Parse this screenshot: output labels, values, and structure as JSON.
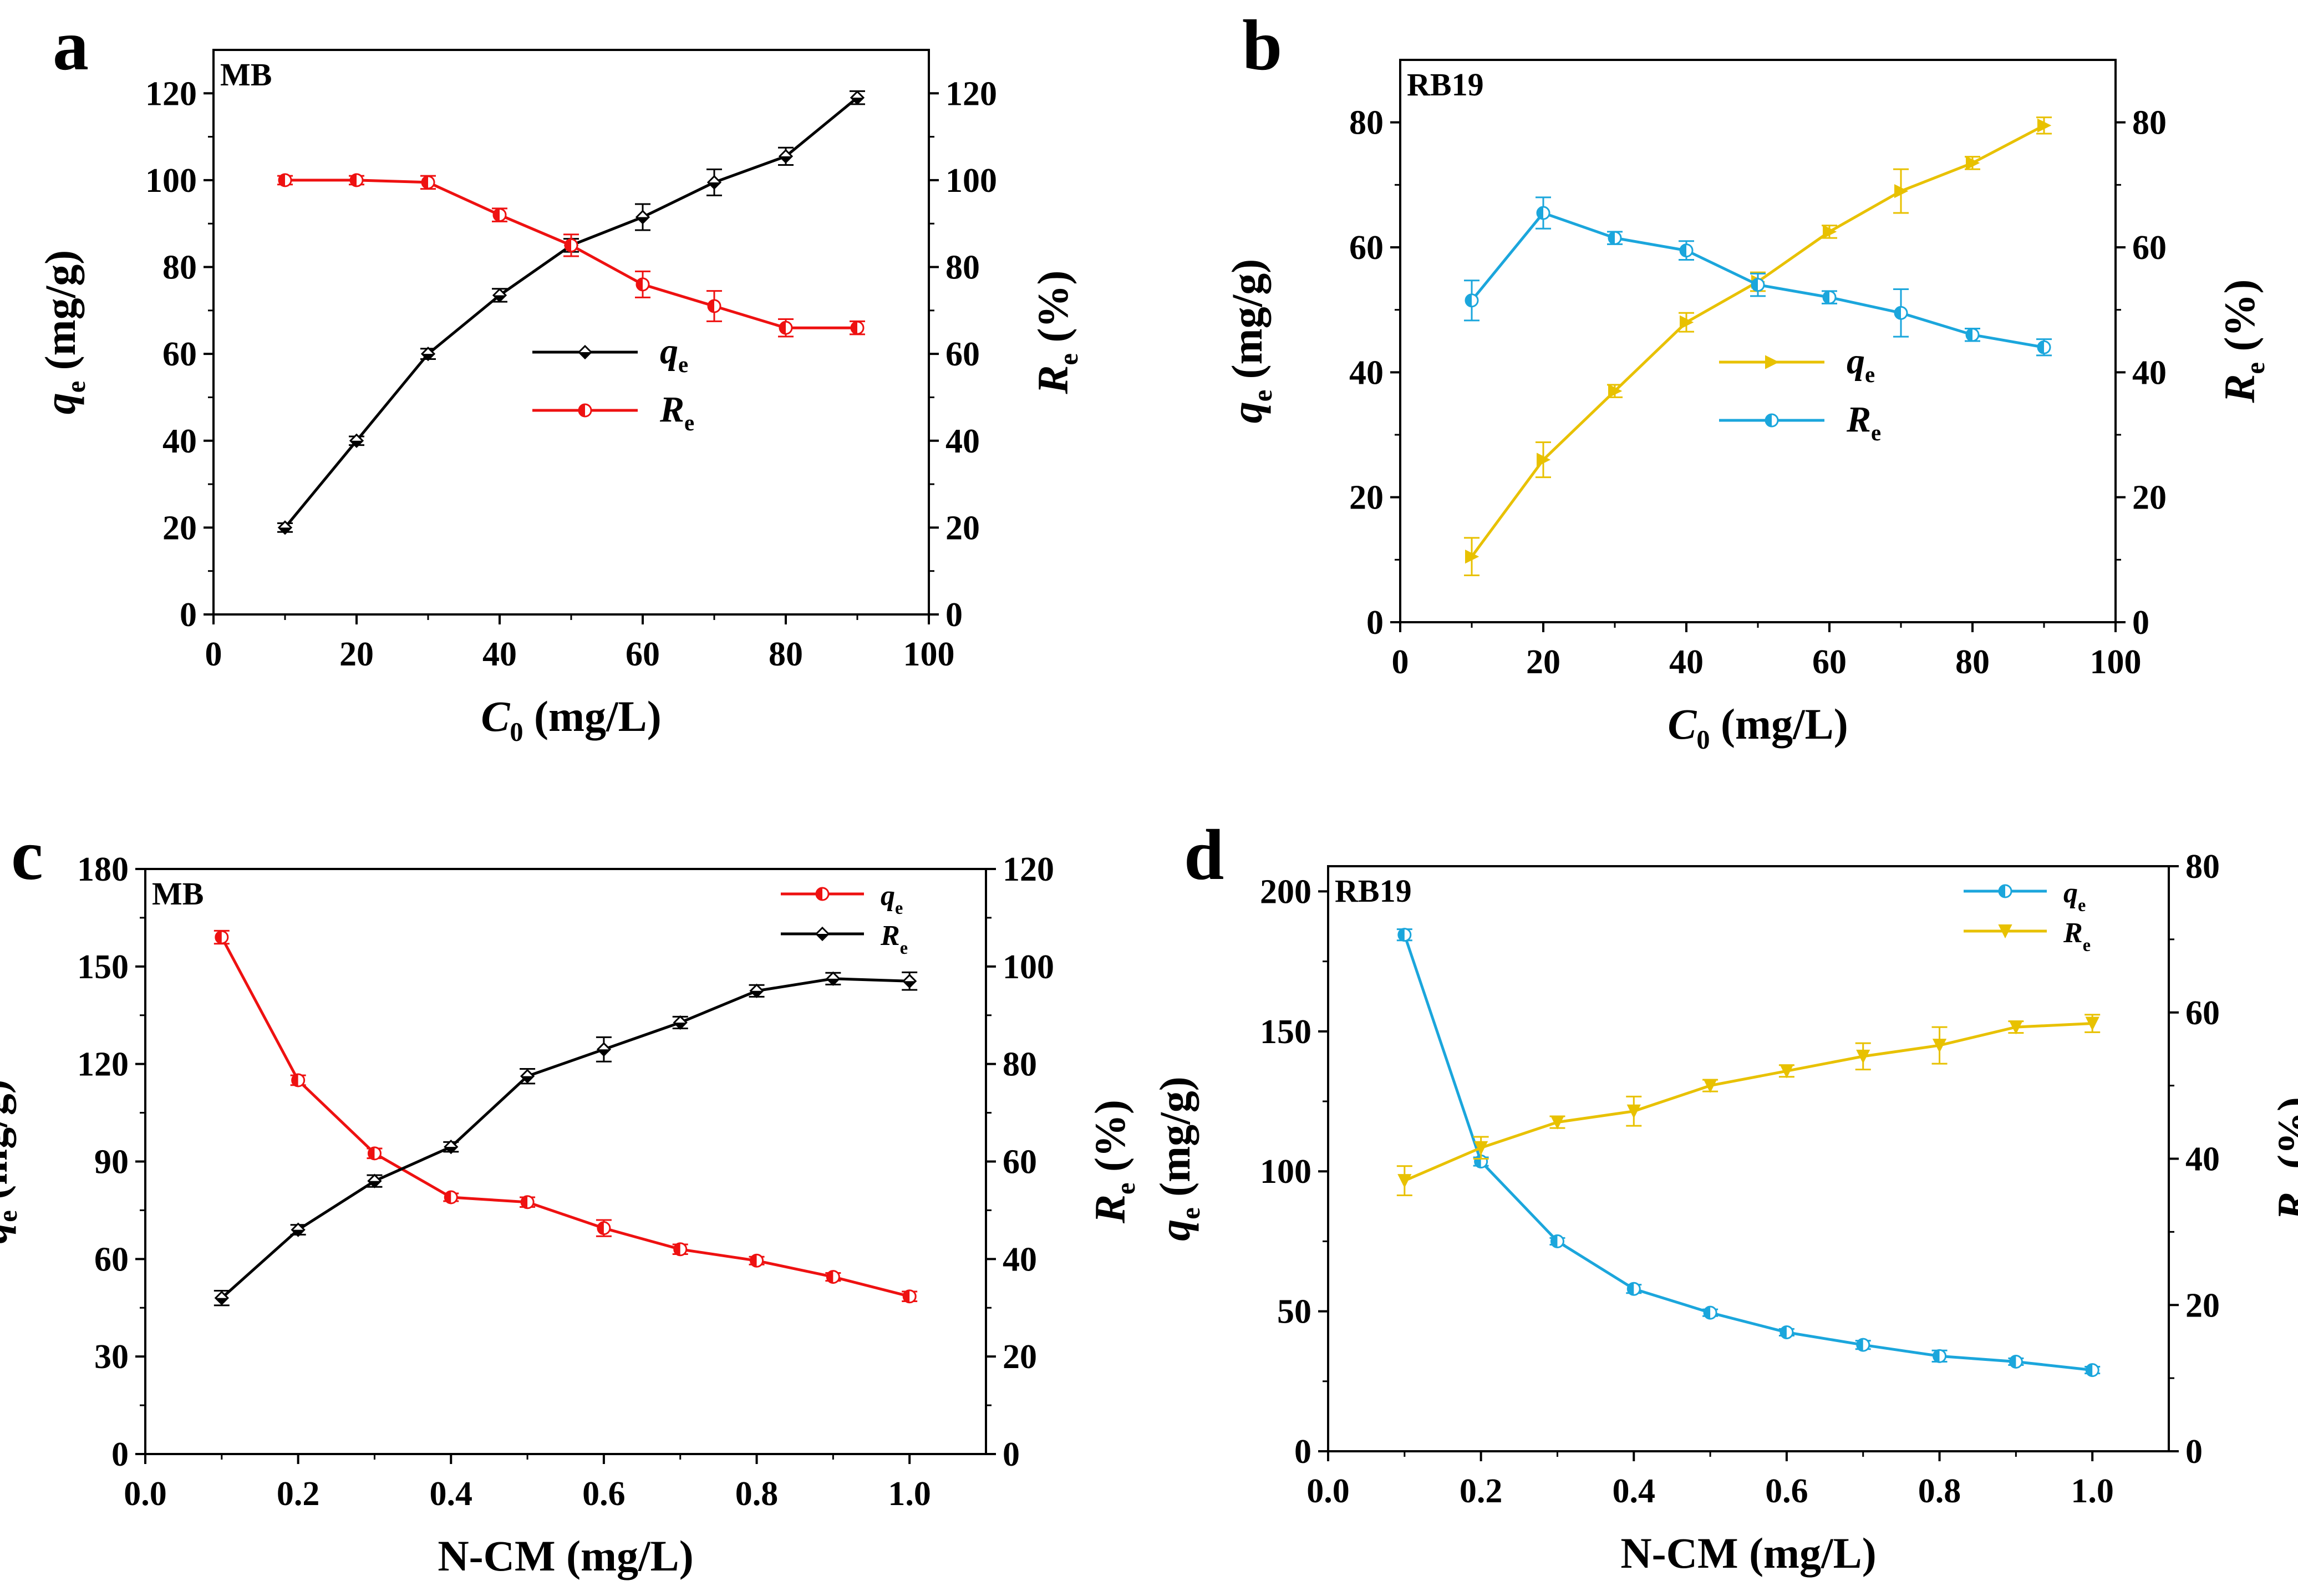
{
  "chart_data": [
    {
      "panel": "a",
      "type": "line",
      "tag": "MB",
      "xlabel": {
        "var": "C",
        "sub": "0",
        "unit": " (mg/L)"
      },
      "ylabel_left": {
        "var": "q",
        "sub": "e",
        "unit": " (mg/g)"
      },
      "ylabel_right": {
        "var": "R",
        "sub": "e",
        "unit": " (%)"
      },
      "xlim": [
        0,
        100
      ],
      "xticks": [
        0,
        20,
        40,
        60,
        80,
        100
      ],
      "xtick_labels": [
        "0",
        "20",
        "40",
        "60",
        "80",
        "100"
      ],
      "ylim_left": [
        0,
        130
      ],
      "yticks_left": [
        0,
        20,
        40,
        60,
        80,
        100,
        120
      ],
      "ytick_labels_left": [
        "0",
        "20",
        "40",
        "60",
        "80",
        "100",
        "120"
      ],
      "ylim_right": [
        0,
        130
      ],
      "yticks_right": [
        0,
        20,
        40,
        60,
        80,
        100,
        120
      ],
      "ytick_labels_right": [
        "0",
        "20",
        "40",
        "60",
        "80",
        "100",
        "120"
      ],
      "series": [
        {
          "name": "q",
          "sub": "e",
          "axis": "left",
          "color": "#000000",
          "marker": "diamond",
          "x": [
            10,
            20,
            30,
            40,
            50,
            60,
            70,
            80,
            90
          ],
          "values": [
            20,
            40,
            60,
            73.5,
            85,
            91.5,
            99.5,
            105.5,
            119
          ],
          "errors": [
            1,
            1,
            1.2,
            1.5,
            1.5,
            3,
            3,
            2,
            1.5
          ]
        },
        {
          "name": "R",
          "sub": "e",
          "axis": "right",
          "color": "#ee1111",
          "marker": "halfcircle",
          "x": [
            10,
            20,
            30,
            40,
            50,
            60,
            70,
            80,
            90
          ],
          "values": [
            100,
            100,
            99.5,
            92,
            85,
            76,
            71,
            66,
            66
          ],
          "errors": [
            1,
            1,
            1.5,
            1.5,
            2.5,
            3,
            3.5,
            2,
            1.5
          ]
        }
      ],
      "legend": "center-right"
    },
    {
      "panel": "b",
      "type": "line",
      "tag": "RB19",
      "xlabel": {
        "var": "C",
        "sub": "0",
        "unit": " (mg/L)"
      },
      "ylabel_left": {
        "var": "q",
        "sub": "e",
        "unit": " (mg/g)"
      },
      "ylabel_right": {
        "var": "R",
        "sub": "e",
        "unit": " (%)"
      },
      "xlim": [
        0,
        100
      ],
      "xticks": [
        0,
        20,
        40,
        60,
        80,
        100
      ],
      "xtick_labels": [
        "0",
        "20",
        "40",
        "60",
        "80",
        "100"
      ],
      "ylim_left": [
        0,
        90
      ],
      "yticks_left": [
        0,
        20,
        40,
        60,
        80
      ],
      "ytick_labels_left": [
        "0",
        "20",
        "40",
        "60",
        "80"
      ],
      "ylim_right": [
        0,
        90
      ],
      "yticks_right": [
        0,
        20,
        40,
        60,
        80
      ],
      "ytick_labels_right": [
        "0",
        "20",
        "40",
        "60",
        "80"
      ],
      "series": [
        {
          "name": "q",
          "sub": "e",
          "axis": "left",
          "color": "#e8c100",
          "marker": "triangle-right",
          "x": [
            10,
            20,
            30,
            40,
            50,
            60,
            70,
            80,
            90
          ],
          "values": [
            10.5,
            26,
            37,
            48,
            54.5,
            62.5,
            69,
            73.5,
            79.5
          ],
          "errors": [
            3,
            2.8,
            1,
            1.5,
            1.5,
            1,
            3.5,
            1,
            1.3
          ]
        },
        {
          "name": "R",
          "sub": "e",
          "axis": "right",
          "color": "#1ba6dc",
          "marker": "halfcircle",
          "x": [
            10,
            20,
            30,
            40,
            50,
            60,
            70,
            80,
            90
          ],
          "values": [
            51.5,
            65.5,
            61.5,
            59.5,
            54,
            52,
            49.5,
            46,
            44
          ],
          "errors": [
            3.2,
            2.5,
            1,
            1.5,
            1.8,
            1,
            3.8,
            1,
            1.3
          ]
        }
      ],
      "legend": "center-right"
    },
    {
      "panel": "c",
      "type": "line",
      "tag": "MB",
      "xlabel": {
        "var": "",
        "sub": "",
        "unit": "N-CM (mg/L)"
      },
      "ylabel_left": {
        "var": "q",
        "sub": "e",
        "unit": " (mg/g)"
      },
      "ylabel_right": {
        "var": "R",
        "sub": "e",
        "unit": " (%)"
      },
      "xlim": [
        0,
        1.1
      ],
      "xticks": [
        0,
        0.2,
        0.4,
        0.6,
        0.8,
        1.0
      ],
      "xtick_labels": [
        "0.0",
        "0.2",
        "0.4",
        "0.6",
        "0.8",
        "1.0"
      ],
      "ylim_left": [
        0,
        180
      ],
      "yticks_left": [
        0,
        30,
        60,
        90,
        120,
        150,
        180
      ],
      "ytick_labels_left": [
        "0",
        "30",
        "60",
        "90",
        "120",
        "150",
        "180"
      ],
      "ylim_right": [
        0,
        120
      ],
      "yticks_right": [
        0,
        20,
        40,
        60,
        80,
        100,
        120
      ],
      "ytick_labels_right": [
        "0",
        "20",
        "40",
        "60",
        "80",
        "100",
        "120"
      ],
      "series": [
        {
          "name": "q",
          "sub": "e",
          "axis": "left",
          "color": "#ee1111",
          "marker": "halfcircle",
          "x": [
            0.1,
            0.2,
            0.3,
            0.4,
            0.5,
            0.6,
            0.7,
            0.8,
            0.9,
            1.0
          ],
          "values": [
            159,
            115,
            92.5,
            79,
            77.5,
            69.5,
            63,
            59.5,
            54.5,
            48.5
          ],
          "errors": [
            2,
            1.5,
            1.5,
            1.2,
            1.5,
            2.5,
            1.5,
            1.2,
            1.2,
            1.5
          ]
        },
        {
          "name": "R",
          "sub": "e",
          "axis": "right",
          "color": "#000000",
          "marker": "diamond",
          "x": [
            0.1,
            0.2,
            0.3,
            0.4,
            0.5,
            0.6,
            0.7,
            0.8,
            0.9,
            1.0
          ],
          "values": [
            32,
            46,
            56,
            63,
            77.5,
            83,
            88.5,
            95,
            97.5,
            97
          ],
          "errors": [
            1.5,
            1,
            1.2,
            1,
            1.5,
            2.5,
            1.2,
            1.2,
            1.2,
            1.8
          ]
        }
      ],
      "legend": "top-right"
    },
    {
      "panel": "d",
      "type": "line",
      "tag": "RB19",
      "xlabel": {
        "var": "",
        "sub": "",
        "unit": "N-CM (mg/L)"
      },
      "ylabel_left": {
        "var": "q",
        "sub": "e",
        "unit": " (mg/g)"
      },
      "ylabel_right": {
        "var": "R",
        "sub": "e",
        "unit": " (%)"
      },
      "xlim": [
        0,
        1.1
      ],
      "xticks": [
        0,
        0.2,
        0.4,
        0.6,
        0.8,
        1.0
      ],
      "xtick_labels": [
        "0.0",
        "0.2",
        "0.4",
        "0.6",
        "0.8",
        "1.0"
      ],
      "ylim_left": [
        0,
        209
      ],
      "yticks_left": [
        0,
        50,
        100,
        150,
        200
      ],
      "ytick_labels_left": [
        "0",
        "50",
        "100",
        "150",
        "200"
      ],
      "ylim_right": [
        0,
        80
      ],
      "yticks_right": [
        0,
        20,
        40,
        60,
        80
      ],
      "ytick_labels_right": [
        "0",
        "20",
        "40",
        "60",
        "80"
      ],
      "series": [
        {
          "name": "q",
          "sub": "e",
          "axis": "left",
          "color": "#1ba6dc",
          "marker": "halfcircle",
          "x": [
            0.1,
            0.2,
            0.3,
            0.4,
            0.5,
            0.6,
            0.7,
            0.8,
            0.9,
            1.0
          ],
          "values": [
            184.5,
            103.5,
            75,
            58,
            49.5,
            42.5,
            38,
            34,
            32,
            29
          ],
          "errors": [
            2,
            1.5,
            1.2,
            1.5,
            1.2,
            1.2,
            1.5,
            2,
            1.2,
            1.2
          ]
        },
        {
          "name": "R",
          "sub": "e",
          "axis": "right",
          "color": "#e8c100",
          "marker": "triangle-down",
          "x": [
            0.1,
            0.2,
            0.3,
            0.4,
            0.5,
            0.6,
            0.7,
            0.8,
            0.9,
            1.0
          ],
          "values": [
            37,
            41.5,
            45,
            46.5,
            50,
            52,
            54,
            55.5,
            58,
            58.5
          ],
          "errors": [
            2,
            1.5,
            0.8,
            2,
            0.8,
            0.8,
            1.8,
            2.5,
            0.8,
            1.2
          ]
        }
      ],
      "legend": "top-right"
    }
  ]
}
